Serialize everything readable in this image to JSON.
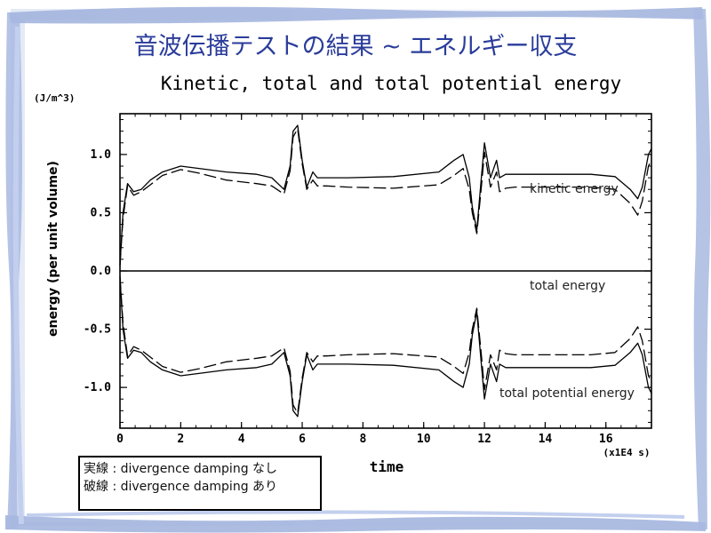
{
  "slide": {
    "title": "音波伝播テストの結果 ~ エネルギー収支"
  },
  "chart_data": {
    "type": "line",
    "title": "Kinetic, total and total potential energy",
    "unit_label": "(J/m^3)",
    "xlabel": "time",
    "x_unit": "(x1E4 s)",
    "ylabel": "energy (per unit volume)",
    "xlim": [
      0,
      17.5
    ],
    "ylim": [
      -1.35,
      1.35
    ],
    "x_ticks": [
      "0",
      "2",
      "4",
      "6",
      "8",
      "10",
      "12",
      "14",
      "16"
    ],
    "y_ticks": [
      "1.0",
      "0.5",
      "0.0",
      "-0.5",
      "-1.0"
    ],
    "annotations": [
      "kinetic energy",
      "total energy",
      "total potential energy"
    ],
    "series": [
      {
        "group": "kinetic",
        "style": "solid",
        "x": [
          0,
          0.1,
          0.25,
          0.45,
          0.7,
          1.0,
          1.4,
          2.0,
          2.6,
          3.5,
          4.5,
          5.0,
          5.4,
          5.6,
          5.7,
          5.85,
          6.0,
          6.15,
          6.35,
          6.5,
          6.8,
          7.5,
          9,
          10.5,
          11.0,
          11.3,
          11.5,
          11.6,
          11.75,
          11.9,
          12.0,
          12.2,
          12.4,
          12.5,
          12.7,
          13,
          14,
          15.5,
          16.3,
          16.8,
          17.05,
          17.2,
          17.4,
          17.5
        ],
        "y": [
          0.05,
          0.5,
          0.75,
          0.68,
          0.7,
          0.78,
          0.85,
          0.9,
          0.88,
          0.85,
          0.83,
          0.8,
          0.7,
          0.9,
          1.2,
          1.25,
          0.95,
          0.72,
          0.85,
          0.8,
          0.8,
          0.8,
          0.81,
          0.85,
          0.95,
          1.0,
          0.8,
          0.55,
          0.35,
          0.8,
          1.1,
          0.8,
          0.95,
          0.8,
          0.83,
          0.83,
          0.83,
          0.83,
          0.81,
          0.7,
          0.62,
          0.72,
          1.0,
          1.05
        ]
      },
      {
        "group": "kinetic",
        "style": "dashed",
        "x": [
          0,
          0.1,
          0.25,
          0.45,
          0.7,
          1.0,
          1.4,
          2.0,
          2.6,
          3.5,
          4.5,
          5.0,
          5.4,
          5.6,
          5.7,
          5.85,
          6.0,
          6.15,
          6.35,
          6.5,
          6.8,
          7.5,
          9,
          10.5,
          11.0,
          11.3,
          11.5,
          11.6,
          11.75,
          11.9,
          12.0,
          12.2,
          12.4,
          12.5,
          12.7,
          13,
          14,
          15.5,
          16.3,
          16.8,
          17.05,
          17.2,
          17.4,
          17.5
        ],
        "y": [
          0.05,
          0.45,
          0.73,
          0.65,
          0.68,
          0.74,
          0.82,
          0.87,
          0.84,
          0.78,
          0.75,
          0.73,
          0.66,
          0.86,
          1.15,
          1.22,
          0.92,
          0.7,
          0.78,
          0.73,
          0.73,
          0.72,
          0.71,
          0.74,
          0.82,
          0.88,
          0.7,
          0.5,
          0.32,
          0.72,
          1.02,
          0.72,
          0.85,
          0.68,
          0.71,
          0.72,
          0.72,
          0.72,
          0.7,
          0.58,
          0.48,
          0.6,
          0.9,
          0.95
        ]
      },
      {
        "group": "total",
        "style": "solid",
        "x": [
          0,
          17.5
        ],
        "y": [
          0.0,
          0.0
        ]
      },
      {
        "group": "potential",
        "style": "solid",
        "x": [
          0,
          0.1,
          0.25,
          0.45,
          0.7,
          1.0,
          1.4,
          2.0,
          2.6,
          3.5,
          4.5,
          5.0,
          5.4,
          5.6,
          5.7,
          5.85,
          6.0,
          6.15,
          6.35,
          6.5,
          6.8,
          7.5,
          9,
          10.5,
          11.0,
          11.3,
          11.5,
          11.6,
          11.75,
          11.9,
          12.0,
          12.2,
          12.4,
          12.5,
          12.7,
          13,
          14,
          15.5,
          16.3,
          16.8,
          17.05,
          17.2,
          17.4,
          17.5
        ],
        "y": [
          -0.05,
          -0.5,
          -0.75,
          -0.68,
          -0.7,
          -0.78,
          -0.85,
          -0.9,
          -0.88,
          -0.85,
          -0.83,
          -0.8,
          -0.7,
          -0.9,
          -1.2,
          -1.25,
          -0.95,
          -0.72,
          -0.85,
          -0.8,
          -0.8,
          -0.8,
          -0.81,
          -0.85,
          -0.95,
          -1.0,
          -0.8,
          -0.55,
          -0.35,
          -0.8,
          -1.1,
          -0.8,
          -0.95,
          -0.8,
          -0.83,
          -0.83,
          -0.83,
          -0.83,
          -0.81,
          -0.7,
          -0.62,
          -0.72,
          -1.0,
          -1.05
        ]
      },
      {
        "group": "potential",
        "style": "dashed",
        "x": [
          0,
          0.1,
          0.25,
          0.45,
          0.7,
          1.0,
          1.4,
          2.0,
          2.6,
          3.5,
          4.5,
          5.0,
          5.4,
          5.6,
          5.7,
          5.85,
          6.0,
          6.15,
          6.35,
          6.5,
          6.8,
          7.5,
          9,
          10.5,
          11.0,
          11.3,
          11.5,
          11.6,
          11.75,
          11.9,
          12.0,
          12.2,
          12.4,
          12.5,
          12.7,
          13,
          14,
          15.5,
          16.3,
          16.8,
          17.05,
          17.2,
          17.4,
          17.5
        ],
        "y": [
          -0.05,
          -0.45,
          -0.73,
          -0.65,
          -0.68,
          -0.74,
          -0.82,
          -0.87,
          -0.84,
          -0.78,
          -0.75,
          -0.73,
          -0.66,
          -0.86,
          -1.15,
          -1.22,
          -0.92,
          -0.7,
          -0.78,
          -0.73,
          -0.73,
          -0.72,
          -0.71,
          -0.74,
          -0.82,
          -0.88,
          -0.7,
          -0.5,
          -0.32,
          -0.72,
          -1.02,
          -0.72,
          -0.85,
          -0.68,
          -0.71,
          -0.72,
          -0.72,
          -0.72,
          -0.7,
          -0.58,
          -0.48,
          -0.6,
          -0.9,
          -0.95
        ]
      }
    ]
  },
  "legend_note": {
    "line1": "実線 : divergence damping  なし",
    "line2": "破線 : divergence damping  あり"
  }
}
